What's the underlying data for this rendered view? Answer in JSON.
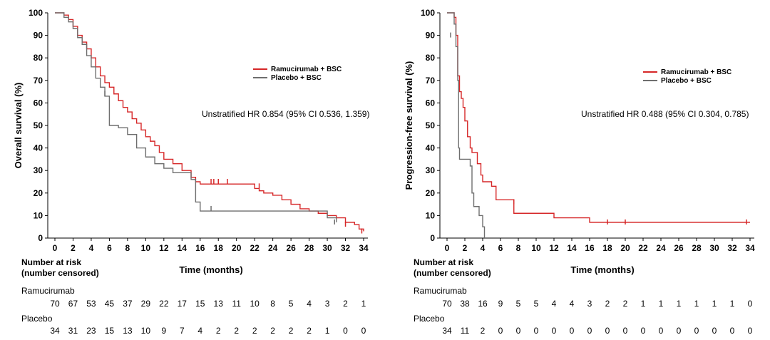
{
  "colors": {
    "ram": "#d62728",
    "pbo": "#6e6e6e",
    "axis": "#000000"
  },
  "chart_data": [
    {
      "type": "line",
      "title": "",
      "xlabel": "Time (months)",
      "ylabel": "Overall survival (%)",
      "xlim": [
        0,
        34
      ],
      "ylim": [
        0,
        100
      ],
      "xticks": [
        0,
        2,
        4,
        6,
        8,
        10,
        12,
        14,
        16,
        18,
        20,
        22,
        24,
        26,
        28,
        30,
        32,
        34
      ],
      "yticks": [
        0,
        10,
        20,
        30,
        40,
        50,
        60,
        70,
        80,
        90,
        100
      ],
      "legend": [
        "Ramucirumab + BSC",
        "Placebo + BSC"
      ],
      "annotation": "Unstratified HR 0.854 (95% CI 0.536, 1.359)",
      "series": [
        {
          "name": "Ramucirumab + BSC",
          "x": [
            0,
            1,
            1.5,
            2,
            2.5,
            3,
            3.5,
            4,
            4.5,
            5,
            5.5,
            6,
            6.5,
            7,
            7.5,
            8,
            8.5,
            9,
            9.5,
            10,
            10.5,
            11,
            11.5,
            12,
            13,
            14,
            15,
            15.5,
            16,
            18,
            20,
            21.5,
            22,
            22.5,
            23,
            24,
            25,
            26,
            27,
            28,
            29,
            30,
            31,
            32,
            33,
            33.5,
            34
          ],
          "y": [
            100,
            99,
            97,
            94,
            90,
            87,
            84,
            80,
            76,
            72,
            69,
            67,
            64,
            61,
            58,
            56,
            53,
            51,
            48,
            45,
            43,
            41,
            38,
            35,
            33,
            30,
            27,
            25,
            24,
            24,
            24,
            24,
            22,
            21,
            20,
            19,
            17,
            15,
            13,
            12,
            11,
            10,
            9,
            7,
            6,
            4,
            3
          ]
        },
        {
          "name": "Placebo + BSC",
          "x": [
            0,
            1,
            1.5,
            2,
            2.5,
            3,
            3.5,
            4,
            4.5,
            5,
            5.5,
            6,
            7,
            8,
            9,
            10,
            11,
            12,
            13,
            14,
            15,
            15.5,
            16,
            17,
            18,
            20,
            22,
            24,
            26,
            28,
            29,
            30,
            31
          ],
          "y": [
            100,
            98,
            96,
            93,
            89,
            86,
            81,
            76,
            71,
            67,
            63,
            50,
            49,
            46,
            40,
            36,
            33,
            31,
            29,
            29,
            26,
            16,
            12,
            12,
            12,
            12,
            12,
            12,
            12,
            12,
            12,
            9,
            7
          ]
        }
      ],
      "censor_ram": [
        [
          17.2,
          25
        ],
        [
          17.5,
          25
        ],
        [
          18,
          25
        ],
        [
          19,
          25
        ],
        [
          22.5,
          23
        ],
        [
          32,
          6
        ],
        [
          33.8,
          3
        ]
      ],
      "censor_pbo": [
        [
          5.5,
          64
        ],
        [
          17.2,
          13
        ],
        [
          30.8,
          7
        ]
      ]
    },
    {
      "type": "line",
      "title": "",
      "xlabel": "Time (months)",
      "ylabel": "Progression-free survival (%)",
      "xlim": [
        0,
        34
      ],
      "ylim": [
        0,
        100
      ],
      "xticks": [
        0,
        2,
        4,
        6,
        8,
        10,
        12,
        14,
        16,
        18,
        20,
        22,
        24,
        26,
        28,
        30,
        32,
        34
      ],
      "yticks": [
        0,
        10,
        20,
        30,
        40,
        50,
        60,
        70,
        80,
        90,
        100
      ],
      "legend": [
        "Ramucirumab + BSC",
        "Placebo + BSC"
      ],
      "annotation": "Unstratified HR 0.488 (95% CI 0.304, 0.785)",
      "series": [
        {
          "name": "Ramucirumab + BSC",
          "x": [
            0,
            0.8,
            1.0,
            1.2,
            1.4,
            1.6,
            1.8,
            2.0,
            2.3,
            2.6,
            2.8,
            3.0,
            3.4,
            3.8,
            4.0,
            4.2,
            5.0,
            5.5,
            7.5,
            12,
            16,
            20,
            34
          ],
          "y": [
            100,
            98,
            90,
            72,
            65,
            62,
            58,
            52,
            45,
            40,
            38,
            38,
            33,
            28,
            25,
            25,
            23,
            17,
            11,
            9,
            7,
            7,
            7
          ]
        },
        {
          "name": "Placebo + BSC",
          "x": [
            0,
            0.8,
            1.0,
            1.2,
            1.3,
            1.4,
            2.4,
            2.6,
            2.8,
            3.0,
            3.6,
            4.0,
            4.2
          ],
          "y": [
            100,
            95,
            85,
            70,
            40,
            35,
            35,
            32,
            20,
            14,
            10,
            5,
            0
          ]
        }
      ],
      "censor_ram": [
        [
          7.5,
          16
        ],
        [
          18,
          7
        ],
        [
          20,
          7
        ],
        [
          33.6,
          7
        ]
      ],
      "censor_pbo": [
        [
          0.4,
          90
        ]
      ]
    }
  ],
  "left": {
    "risk_title": [
      "Number at risk",
      "(number censored)"
    ],
    "ram_label": "Ramucirumab",
    "pbo_label": "Placebo",
    "ram_counts": [
      "70",
      "67",
      "53",
      "45",
      "37",
      "29",
      "22",
      "17",
      "15",
      "13",
      "11",
      "10",
      "8",
      "5",
      "4",
      "3",
      "2",
      "1"
    ],
    "pbo_counts": [
      "34",
      "31",
      "23",
      "15",
      "13",
      "10",
      "9",
      "7",
      "4",
      "2",
      "2",
      "2",
      "2",
      "2",
      "2",
      "1",
      "0",
      "0"
    ]
  },
  "right": {
    "risk_title": [
      "Number at risk",
      "(number censored)"
    ],
    "ram_label": "Ramucirumab",
    "pbo_label": "Placebo",
    "ram_counts": [
      "70",
      "38",
      "16",
      "9",
      "5",
      "5",
      "4",
      "4",
      "3",
      "2",
      "2",
      "1",
      "1",
      "1",
      "1",
      "1",
      "1",
      "0"
    ],
    "pbo_counts": [
      "34",
      "11",
      "2",
      "0",
      "0",
      "0",
      "0",
      "0",
      "0",
      "0",
      "0",
      "0",
      "0",
      "0",
      "0",
      "0",
      "0",
      "0"
    ]
  }
}
